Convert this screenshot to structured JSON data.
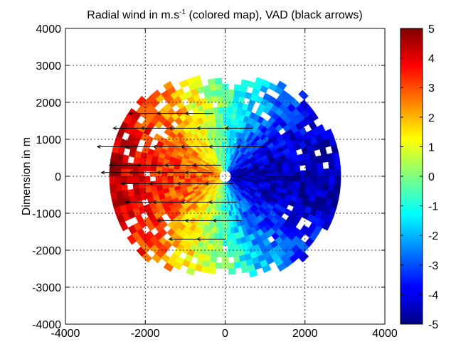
{
  "chart_data": {
    "type": "heatmap",
    "title_main": "Radial wind in m.s",
    "title_sup": "-1",
    "title_rest": " (colored map), VAD (black arrows)",
    "xlabel": "",
    "ylabel": "Dimension in m",
    "xlim": [
      -4000,
      4000
    ],
    "ylim": [
      -4000,
      4000
    ],
    "xticks": [
      "-4000",
      "-2000",
      "0",
      "2000",
      "4000"
    ],
    "yticks": [
      "4000",
      "3000",
      "2000",
      "1000",
      "0",
      "-1000",
      "-2000",
      "-3000",
      "-4000"
    ],
    "grid": true,
    "colorbar": {
      "min": -5,
      "max": 5,
      "colormap": "jet",
      "ticks": [
        "5",
        "4",
        "3",
        "2",
        "1",
        "0",
        "-1",
        "-2",
        "-3",
        "-4",
        "-5"
      ]
    },
    "radial_wind": {
      "center": [
        0,
        0
      ],
      "max_range_m": 2900,
      "min_value": -4.5,
      "max_value": 4.5
    },
    "vad_arrows": [
      {
        "x": -300,
        "y": 1700,
        "dx": -700,
        "dy": 0
      },
      {
        "x": -1000,
        "y": 1700,
        "dx": -700,
        "dy": 0
      },
      {
        "x": -1700,
        "y": 1700,
        "dx": -700,
        "dy": 0
      },
      {
        "x": 700,
        "y": 1300,
        "dx": -700,
        "dy": 0
      },
      {
        "x": 0,
        "y": 1300,
        "dx": -700,
        "dy": 0
      },
      {
        "x": -700,
        "y": 1300,
        "dx": -700,
        "dy": 0
      },
      {
        "x": -1400,
        "y": 1300,
        "dx": -700,
        "dy": 0
      },
      {
        "x": -2100,
        "y": 1300,
        "dx": -700,
        "dy": 0
      },
      {
        "x": 1000,
        "y": 800,
        "dx": -700,
        "dy": 0
      },
      {
        "x": 300,
        "y": 800,
        "dx": -700,
        "dy": 0
      },
      {
        "x": -400,
        "y": 800,
        "dx": -700,
        "dy": 0
      },
      {
        "x": -1100,
        "y": 800,
        "dx": -700,
        "dy": 0
      },
      {
        "x": -1800,
        "y": 800,
        "dx": -700,
        "dy": 0
      },
      {
        "x": -2500,
        "y": 800,
        "dx": -700,
        "dy": 0
      },
      {
        "x": -100,
        "y": 300,
        "dx": -700,
        "dy": 0
      },
      {
        "x": -800,
        "y": 300,
        "dx": -700,
        "dy": 0
      },
      {
        "x": -1500,
        "y": 300,
        "dx": -700,
        "dy": 0
      },
      {
        "x": -2200,
        "y": 300,
        "dx": -700,
        "dy": 0
      },
      {
        "x": -300,
        "y": 100,
        "dx": -700,
        "dy": 0
      },
      {
        "x": -1000,
        "y": 100,
        "dx": -700,
        "dy": 0
      },
      {
        "x": -1700,
        "y": 100,
        "dx": -700,
        "dy": 0
      },
      {
        "x": -2400,
        "y": 100,
        "dx": -700,
        "dy": 0
      },
      {
        "x": 200,
        "y": -200,
        "dx": -700,
        "dy": 0
      },
      {
        "x": -500,
        "y": -200,
        "dx": -700,
        "dy": 0
      },
      {
        "x": -1200,
        "y": -200,
        "dx": -700,
        "dy": 0
      },
      {
        "x": -1900,
        "y": -200,
        "dx": -700,
        "dy": 0
      },
      {
        "x": 300,
        "y": -700,
        "dx": -700,
        "dy": 0
      },
      {
        "x": -400,
        "y": -700,
        "dx": -700,
        "dy": 0
      },
      {
        "x": -1100,
        "y": -700,
        "dx": -700,
        "dy": 0
      },
      {
        "x": -1800,
        "y": -700,
        "dx": -700,
        "dy": 0
      },
      {
        "x": 400,
        "y": -1200,
        "dx": -700,
        "dy": 0
      },
      {
        "x": -300,
        "y": -1200,
        "dx": -700,
        "dy": 0
      },
      {
        "x": -1000,
        "y": -1200,
        "dx": -700,
        "dy": 0
      },
      {
        "x": 0,
        "y": -1700,
        "dx": -700,
        "dy": 0
      },
      {
        "x": -700,
        "y": -1700,
        "dx": -700,
        "dy": 0
      }
    ]
  }
}
